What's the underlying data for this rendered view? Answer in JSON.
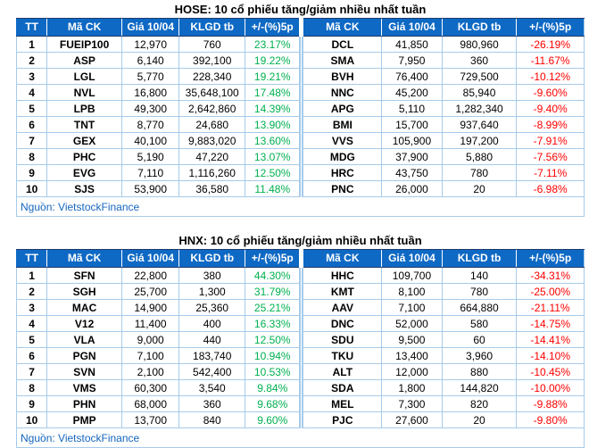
{
  "colors": {
    "header_bg": "#0E69C4",
    "header_text": "#FFFFFF",
    "grid_border": "#A6CBEA",
    "up_green": "#00B050",
    "down_red": "#FF0000",
    "source_text": "#1565BE",
    "title_text": "#000000"
  },
  "chart_data": [
    {
      "type": "table",
      "title": "HOSE: 10 cổ phiếu tăng/giảm nhiều nhất tuần",
      "columns": [
        "TT",
        "Mã CK",
        "Giá 10/04",
        "KLGD tb",
        "+/-(%)5p",
        "Mã CK",
        "Giá 10/04",
        "KLGD tb",
        "+/-(%)5p"
      ],
      "rows": [
        [
          "1",
          "FUEIP100",
          "12,970",
          "760",
          "23.17%",
          "DCL",
          "41,850",
          "980,960",
          "-26.19%"
        ],
        [
          "2",
          "ASP",
          "6,140",
          "392,100",
          "19.22%",
          "SMA",
          "7,950",
          "360",
          "-11.67%"
        ],
        [
          "3",
          "LGL",
          "5,770",
          "228,340",
          "19.21%",
          "BVH",
          "76,400",
          "729,500",
          "-10.12%"
        ],
        [
          "4",
          "NVL",
          "16,800",
          "35,648,100",
          "17.48%",
          "NNC",
          "45,200",
          "85,940",
          "-9.60%"
        ],
        [
          "5",
          "LPB",
          "49,300",
          "2,642,860",
          "14.39%",
          "APG",
          "5,110",
          "1,282,340",
          "-9.40%"
        ],
        [
          "6",
          "TNT",
          "8,770",
          "24,680",
          "13.90%",
          "BMI",
          "15,700",
          "937,640",
          "-8.99%"
        ],
        [
          "7",
          "GEX",
          "40,100",
          "9,883,020",
          "13.60%",
          "VVS",
          "105,900",
          "197,200",
          "-7.91%"
        ],
        [
          "8",
          "PHC",
          "5,190",
          "47,220",
          "13.07%",
          "MDG",
          "37,900",
          "5,880",
          "-7.56%"
        ],
        [
          "9",
          "EVG",
          "7,110",
          "1,116,260",
          "12.50%",
          "HRC",
          "43,750",
          "780",
          "-7.11%"
        ],
        [
          "10",
          "SJS",
          "53,900",
          "36,580",
          "11.48%",
          "PNC",
          "26,000",
          "20",
          "-6.98%"
        ]
      ],
      "source": "Nguồn: VietstockFinance"
    },
    {
      "type": "table",
      "title": "HNX: 10 cổ phiếu tăng/giảm nhiều nhất tuần",
      "columns": [
        "TT",
        "Mã CK",
        "Giá 10/04",
        "KLGD tb",
        "+/-(%)5p",
        "Mã CK",
        "Giá 10/04",
        "KLGD tb",
        "+/-(%)5p"
      ],
      "rows": [
        [
          "1",
          "SFN",
          "22,800",
          "380",
          "44.30%",
          "HHC",
          "109,700",
          "140",
          "-34.31%"
        ],
        [
          "2",
          "SGH",
          "25,700",
          "1,300",
          "31.79%",
          "KMT",
          "8,100",
          "780",
          "-25.00%"
        ],
        [
          "3",
          "MAC",
          "14,900",
          "25,360",
          "25.21%",
          "AAV",
          "7,100",
          "664,880",
          "-21.11%"
        ],
        [
          "4",
          "V12",
          "11,400",
          "400",
          "16.33%",
          "DNC",
          "52,000",
          "580",
          "-14.75%"
        ],
        [
          "5",
          "VLA",
          "9,000",
          "440",
          "12.50%",
          "SDU",
          "9,500",
          "60",
          "-14.41%"
        ],
        [
          "6",
          "PGN",
          "7,100",
          "183,740",
          "10.94%",
          "TKU",
          "13,400",
          "3,960",
          "-14.10%"
        ],
        [
          "7",
          "SVN",
          "2,100",
          "542,400",
          "10.53%",
          "ALT",
          "12,000",
          "880",
          "-10.45%"
        ],
        [
          "8",
          "VMS",
          "60,300",
          "3,540",
          "9.84%",
          "SDA",
          "1,800",
          "144,820",
          "-10.00%"
        ],
        [
          "9",
          "PHN",
          "68,000",
          "360",
          "9.68%",
          "MEL",
          "7,300",
          "820",
          "-9.88%"
        ],
        [
          "10",
          "PMP",
          "13,700",
          "840",
          "9.60%",
          "PJC",
          "27,600",
          "20",
          "-9.80%"
        ]
      ],
      "source": "Nguồn: VietstockFinance"
    }
  ]
}
